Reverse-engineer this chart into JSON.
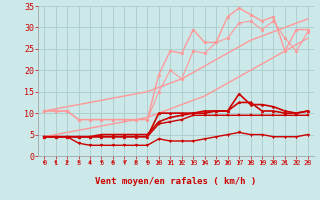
{
  "xlabel": "Vent moyen/en rafales ( km/h )",
  "xlim": [
    -0.5,
    23.5
  ],
  "ylim": [
    0,
    35
  ],
  "yticks": [
    0,
    5,
    10,
    15,
    20,
    25,
    30,
    35
  ],
  "xticks": [
    0,
    1,
    2,
    3,
    4,
    5,
    6,
    7,
    8,
    9,
    10,
    11,
    12,
    13,
    14,
    15,
    16,
    17,
    18,
    19,
    20,
    21,
    22,
    23
  ],
  "bg_color": "#cce8e8",
  "grid_color": "#aacccc",
  "series": [
    {
      "x": [
        0,
        1,
        2,
        3,
        4,
        5,
        6,
        7,
        8,
        9,
        10,
        11,
        12,
        13,
        14,
        15,
        16,
        17,
        18,
        19,
        20,
        21,
        22,
        23
      ],
      "y": [
        10.5,
        11.0,
        11.5,
        12.0,
        12.5,
        13.0,
        13.5,
        14.0,
        14.5,
        15.0,
        16.0,
        17.0,
        18.0,
        19.5,
        21.0,
        22.5,
        24.0,
        25.5,
        27.0,
        28.0,
        29.0,
        30.0,
        31.0,
        32.0
      ],
      "color": "#ff9999",
      "lw": 1.0,
      "marker": null,
      "ms": 0
    },
    {
      "x": [
        0,
        1,
        2,
        3,
        4,
        5,
        6,
        7,
        8,
        9,
        10,
        11,
        12,
        13,
        14,
        15,
        16,
        17,
        18,
        19,
        20,
        21,
        22,
        23
      ],
      "y": [
        4.5,
        5.0,
        5.5,
        6.0,
        6.5,
        7.0,
        7.5,
        8.0,
        8.5,
        9.0,
        10.0,
        11.0,
        12.0,
        13.0,
        14.0,
        15.5,
        17.0,
        18.5,
        20.0,
        21.5,
        23.0,
        24.5,
        26.0,
        27.5
      ],
      "color": "#ff9999",
      "lw": 1.0,
      "marker": null,
      "ms": 0
    },
    {
      "x": [
        0,
        1,
        2,
        3,
        4,
        5,
        6,
        7,
        8,
        9,
        10,
        11,
        12,
        13,
        14,
        15,
        16,
        17,
        18,
        19,
        20,
        21,
        22,
        23
      ],
      "y": [
        10.5,
        10.5,
        10.5,
        8.5,
        8.5,
        8.5,
        8.5,
        8.5,
        8.5,
        8.5,
        19.0,
        24.5,
        24.0,
        29.5,
        26.5,
        26.5,
        32.5,
        34.5,
        33.0,
        31.5,
        32.5,
        24.5,
        29.5,
        29.5
      ],
      "color": "#ff9999",
      "lw": 1.0,
      "marker": "o",
      "ms": 2.0
    },
    {
      "x": [
        0,
        1,
        2,
        3,
        4,
        5,
        6,
        7,
        8,
        9,
        10,
        11,
        12,
        13,
        14,
        15,
        16,
        17,
        18,
        19,
        20,
        21,
        22,
        23
      ],
      "y": [
        10.5,
        10.5,
        10.5,
        8.5,
        8.5,
        8.5,
        8.5,
        8.5,
        8.5,
        8.5,
        15.0,
        20.0,
        18.0,
        24.5,
        24.0,
        26.5,
        27.5,
        31.0,
        31.5,
        29.5,
        31.5,
        27.5,
        24.5,
        29.0
      ],
      "color": "#ff9999",
      "lw": 0.8,
      "marker": "o",
      "ms": 2.0
    },
    {
      "x": [
        0,
        1,
        2,
        3,
        4,
        5,
        6,
        7,
        8,
        9,
        10,
        11,
        12,
        13,
        14,
        15,
        16,
        17,
        18,
        19,
        20,
        21,
        22,
        23
      ],
      "y": [
        4.5,
        4.5,
        4.5,
        4.5,
        4.5,
        4.5,
        4.5,
        4.5,
        4.5,
        4.5,
        10.0,
        10.0,
        10.0,
        10.0,
        10.5,
        10.5,
        10.5,
        12.5,
        12.5,
        10.5,
        10.5,
        10.0,
        10.0,
        10.5
      ],
      "color": "#cc0000",
      "lw": 1.2,
      "marker": "^",
      "ms": 2.0
    },
    {
      "x": [
        0,
        1,
        2,
        3,
        4,
        5,
        6,
        7,
        8,
        9,
        10,
        11,
        12,
        13,
        14,
        15,
        16,
        17,
        18,
        19,
        20,
        21,
        22,
        23
      ],
      "y": [
        4.5,
        4.5,
        4.5,
        4.5,
        4.5,
        5.0,
        5.0,
        5.0,
        5.0,
        5.0,
        8.0,
        9.0,
        9.5,
        10.0,
        10.0,
        10.5,
        10.5,
        14.5,
        12.0,
        12.0,
        11.5,
        10.5,
        10.0,
        10.5
      ],
      "color": "#cc0000",
      "lw": 1.2,
      "marker": "D",
      "ms": 1.5
    },
    {
      "x": [
        0,
        1,
        2,
        3,
        4,
        5,
        6,
        7,
        8,
        9,
        10,
        11,
        12,
        13,
        14,
        15,
        16,
        17,
        18,
        19,
        20,
        21,
        22,
        23
      ],
      "y": [
        4.5,
        4.5,
        4.5,
        4.5,
        4.5,
        4.5,
        4.5,
        4.5,
        4.5,
        4.5,
        7.5,
        8.0,
        8.5,
        9.5,
        9.5,
        9.5,
        9.5,
        9.5,
        9.5,
        9.5,
        9.5,
        9.5,
        9.5,
        9.5
      ],
      "color": "#cc0000",
      "lw": 1.0,
      "marker": "s",
      "ms": 1.5
    },
    {
      "x": [
        0,
        1,
        2,
        3,
        4,
        5,
        6,
        7,
        8,
        9,
        10,
        11,
        12,
        13,
        14,
        15,
        16,
        17,
        18,
        19,
        20,
        21,
        22,
        23
      ],
      "y": [
        4.5,
        4.5,
        4.5,
        3.0,
        2.5,
        2.5,
        2.5,
        2.5,
        2.5,
        2.5,
        4.0,
        3.5,
        3.5,
        3.5,
        4.0,
        4.5,
        5.0,
        5.5,
        5.0,
        5.0,
        4.5,
        4.5,
        4.5,
        5.0
      ],
      "color": "#cc0000",
      "lw": 1.0,
      "marker": "v",
      "ms": 2.0
    }
  ],
  "tick_label_color": "#cc0000",
  "tick_label_fontsize": 5.0,
  "xlabel_fontsize": 6.5,
  "xlabel_color": "#cc0000",
  "ytick_label_fontsize": 6.0
}
